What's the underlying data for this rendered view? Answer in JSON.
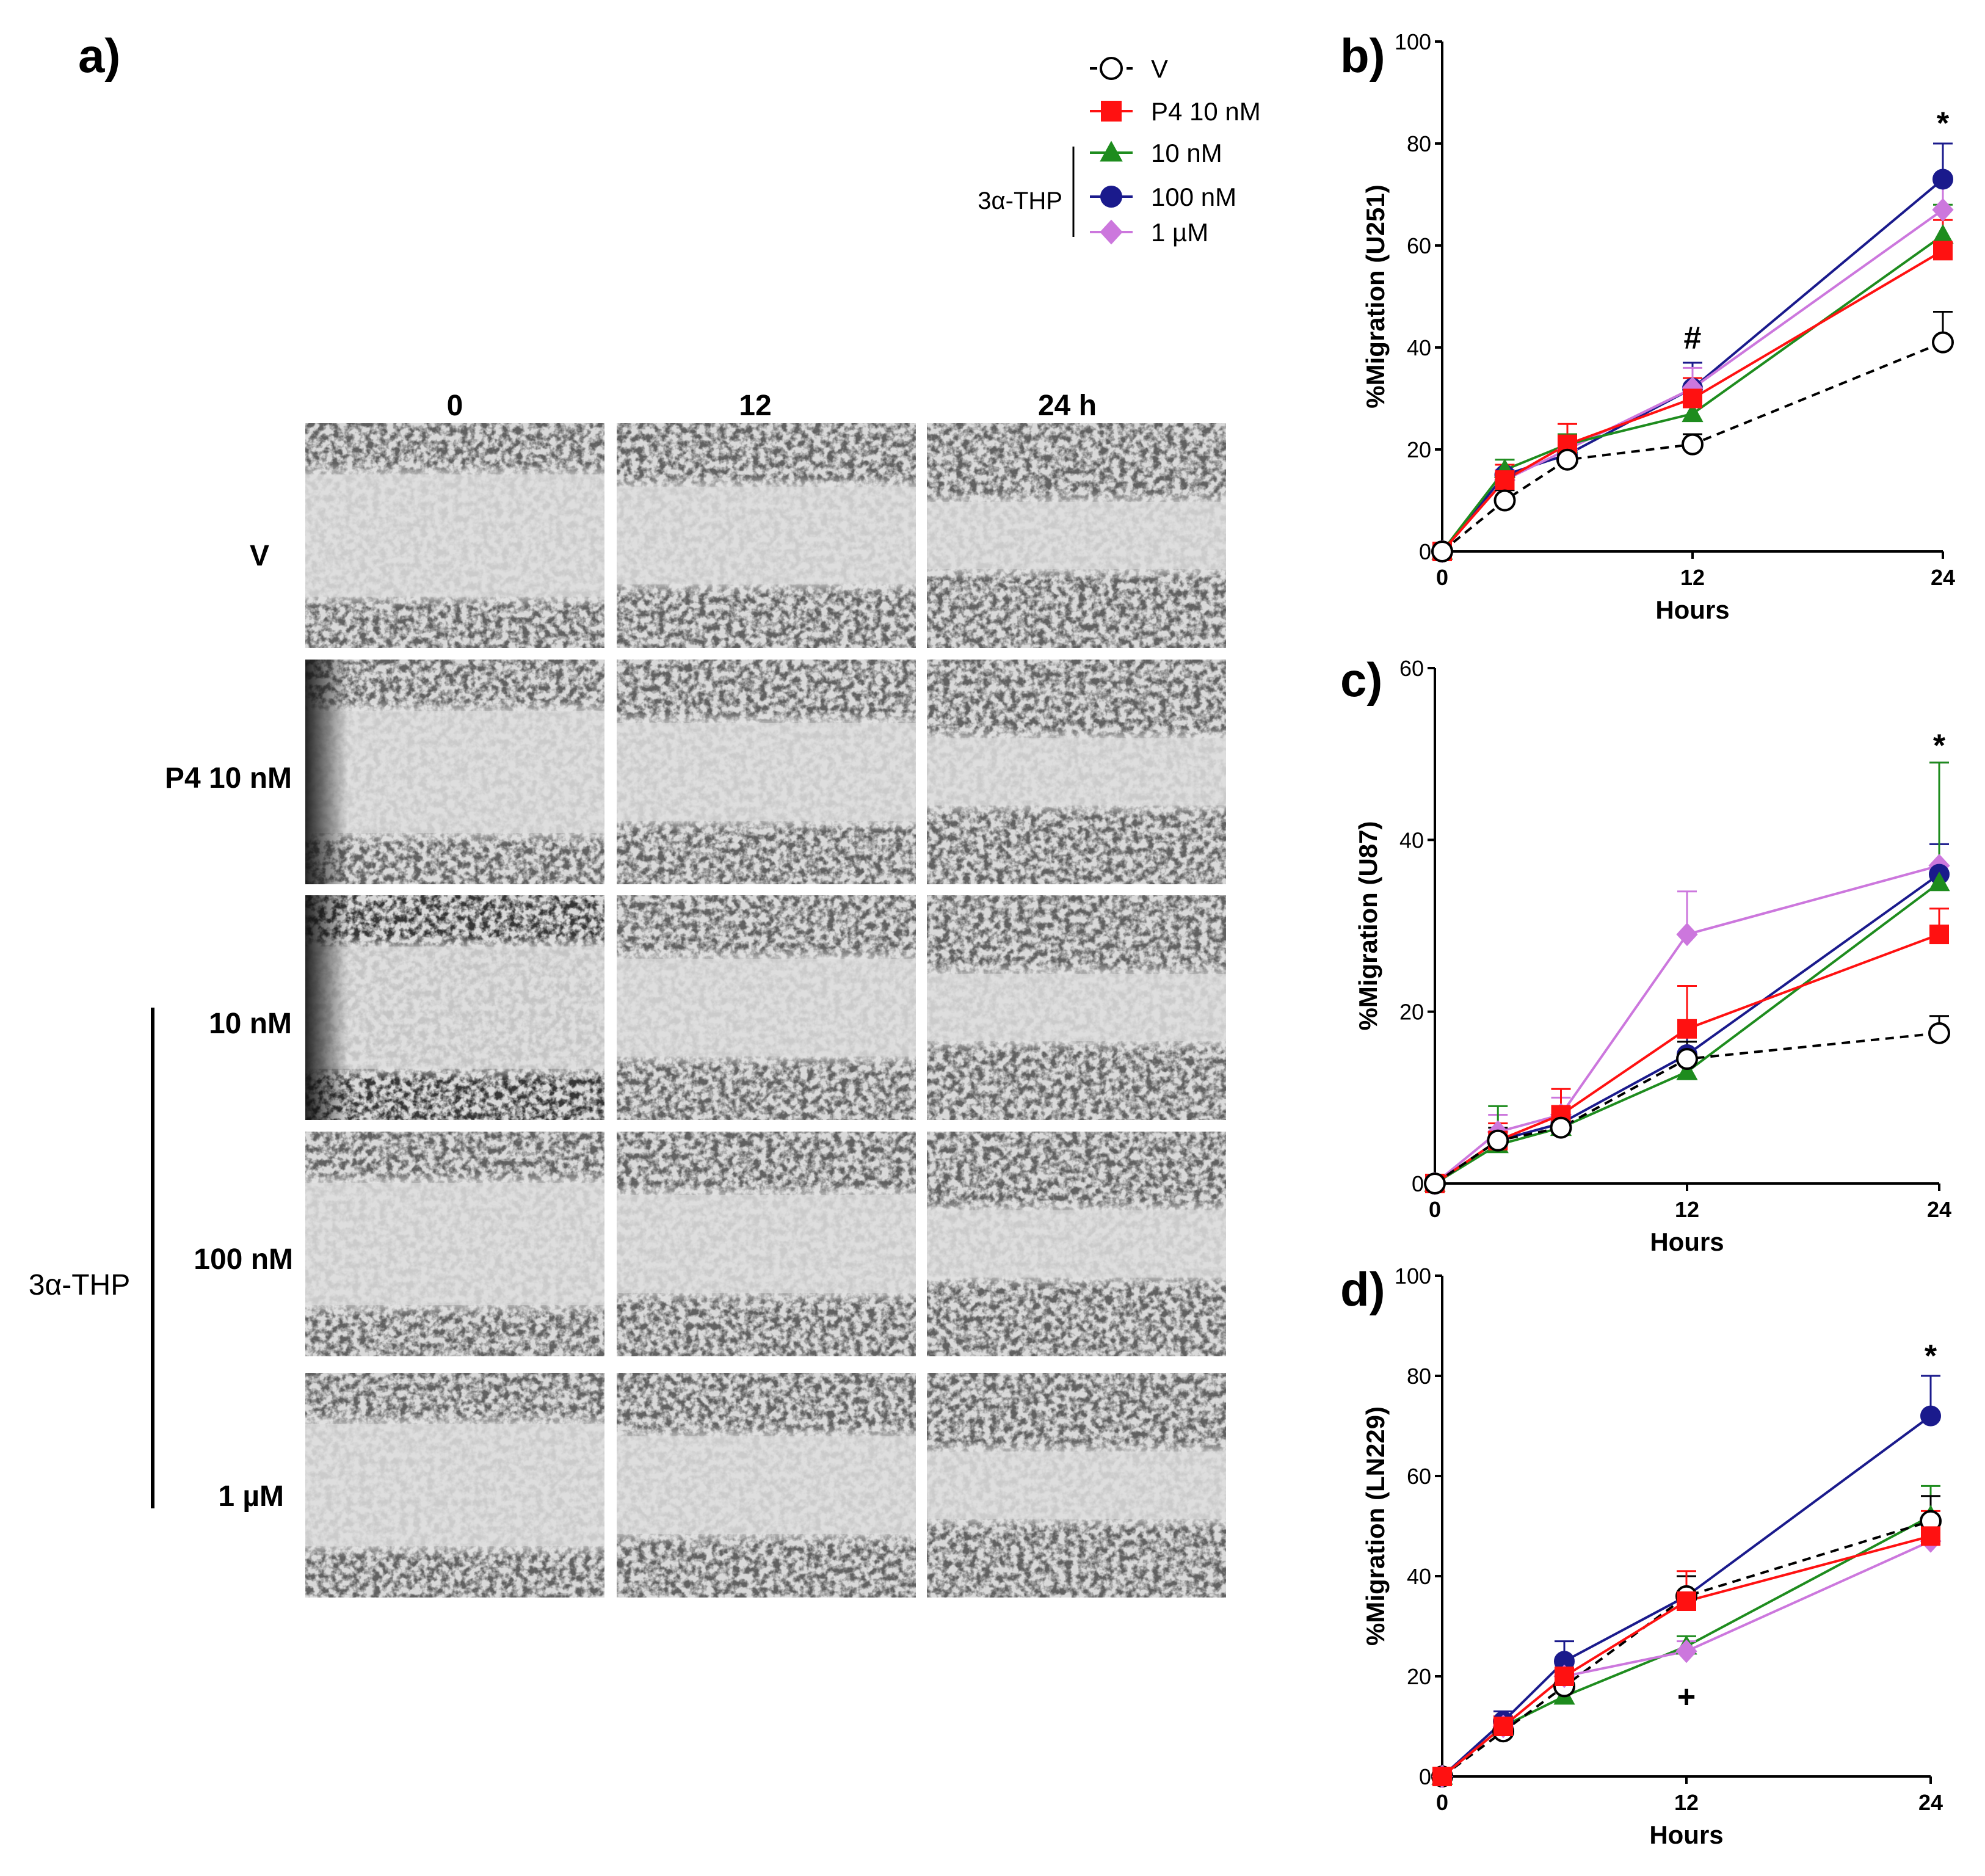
{
  "panel_a": {
    "label": "a)",
    "columns": [
      "0",
      "12",
      "24 h"
    ],
    "rows": [
      "V",
      "P4 10 nM",
      "10 nM",
      "100 nM",
      "1 µM"
    ],
    "group_label": "3α-THP"
  },
  "legend": {
    "group_label": "3α-THP",
    "entries": [
      {
        "label": "V",
        "color": "#000000",
        "marker": "open-circle",
        "dashed": true
      },
      {
        "label": "P4 10 nM",
        "color": "#ff1111",
        "marker": "square",
        "dashed": false
      },
      {
        "label": "10 nM",
        "color": "#1e8c1e",
        "marker": "triangle",
        "dashed": false
      },
      {
        "label": "100 nM",
        "color": "#1a1a8c",
        "marker": "circle",
        "dashed": false
      },
      {
        "label": "1 µM",
        "color": "#cc77dd",
        "marker": "diamond",
        "dashed": false
      }
    ]
  },
  "chart_data": [
    {
      "panel": "b)",
      "type": "line",
      "ylabel": "%Migration (U251)",
      "xlabel": "Hours",
      "xlim": [
        0,
        24
      ],
      "ylim": [
        0,
        100
      ],
      "xticks": [
        0,
        12,
        24
      ],
      "yticks": [
        0,
        20,
        40,
        60,
        80,
        100
      ],
      "annotations": [
        {
          "text": "#",
          "x": 12,
          "y": 42
        },
        {
          "text": "*",
          "x": 24,
          "y": 84
        }
      ],
      "series": [
        {
          "name": "100 nM",
          "x": [
            0,
            3,
            6,
            12,
            24
          ],
          "y": [
            0,
            15,
            19,
            32,
            73
          ],
          "err": [
            0,
            2,
            2,
            5,
            7
          ]
        },
        {
          "name": "1 µM",
          "x": [
            0,
            3,
            6,
            12,
            24
          ],
          "y": [
            0,
            14,
            20,
            32,
            67
          ],
          "err": [
            0,
            2,
            2,
            4,
            6
          ]
        },
        {
          "name": "10 nM",
          "x": [
            0,
            3,
            6,
            12,
            24
          ],
          "y": [
            0,
            16,
            21,
            27,
            62
          ],
          "err": [
            0,
            2,
            2,
            3,
            6
          ]
        },
        {
          "name": "P4 10 nM",
          "x": [
            0,
            3,
            6,
            12,
            24
          ],
          "y": [
            0,
            14,
            21,
            30,
            59
          ],
          "err": [
            0,
            3,
            4,
            4,
            6
          ]
        },
        {
          "name": "V",
          "x": [
            0,
            3,
            6,
            12,
            24
          ],
          "y": [
            0,
            10,
            18,
            21,
            41
          ],
          "err": [
            0,
            2,
            2,
            2,
            6
          ]
        }
      ]
    },
    {
      "panel": "c)",
      "type": "line",
      "ylabel": "%Migration (U87)",
      "xlabel": "Hours",
      "xlim": [
        0,
        24
      ],
      "ylim": [
        0,
        60
      ],
      "xticks": [
        0,
        12,
        24
      ],
      "yticks": [
        0,
        20,
        40,
        60
      ],
      "annotations": [
        {
          "text": "*",
          "x": 24,
          "y": 51
        }
      ],
      "series": [
        {
          "name": "1 µM",
          "x": [
            0,
            3,
            6,
            12,
            24
          ],
          "y": [
            0,
            6,
            8,
            29,
            37
          ],
          "err": [
            0,
            2,
            2,
            5,
            12
          ]
        },
        {
          "name": "100 nM",
          "x": [
            0,
            3,
            6,
            12,
            24
          ],
          "y": [
            0,
            5,
            7,
            15,
            36
          ],
          "err": [
            0,
            2,
            2,
            3,
            3.5
          ]
        },
        {
          "name": "10 nM",
          "x": [
            0,
            3,
            6,
            12,
            24
          ],
          "y": [
            0,
            4.5,
            6.5,
            13,
            35
          ],
          "err": [
            0,
            4.5,
            2,
            2,
            14
          ]
        },
        {
          "name": "P4 10 nM",
          "x": [
            0,
            3,
            6,
            12,
            24
          ],
          "y": [
            0,
            5,
            8,
            18,
            29
          ],
          "err": [
            0,
            2,
            3,
            5,
            3
          ]
        },
        {
          "name": "V",
          "x": [
            0,
            3,
            6,
            12,
            24
          ],
          "y": [
            0,
            5,
            6.5,
            14.5,
            17.5
          ],
          "err": [
            0,
            1.5,
            1,
            2,
            2
          ]
        }
      ]
    },
    {
      "panel": "d)",
      "type": "line",
      "ylabel": "%Migration (LN229)",
      "xlabel": "Hours",
      "xlim": [
        0,
        24
      ],
      "ylim": [
        0,
        100
      ],
      "xticks": [
        0,
        12,
        24
      ],
      "yticks": [
        0,
        20,
        40,
        60,
        80,
        100
      ],
      "annotations": [
        {
          "text": "*",
          "x": 24,
          "y": 84
        },
        {
          "text": "+",
          "x": 12,
          "y": 16
        }
      ],
      "series": [
        {
          "name": "100 nM",
          "x": [
            0,
            3,
            6,
            12,
            24
          ],
          "y": [
            0,
            11,
            23,
            36,
            72
          ],
          "err": [
            0,
            2,
            4,
            4,
            8
          ]
        },
        {
          "name": "10 nM",
          "x": [
            0,
            3,
            6,
            12,
            24
          ],
          "y": [
            0,
            10,
            16,
            26,
            52
          ],
          "err": [
            0,
            2,
            2,
            2,
            6
          ]
        },
        {
          "name": "V",
          "x": [
            0,
            3,
            6,
            12,
            24
          ],
          "y": [
            0,
            9,
            18,
            36,
            51
          ],
          "err": [
            0,
            2,
            3,
            4,
            5
          ]
        },
        {
          "name": "1 µM",
          "x": [
            0,
            3,
            6,
            12,
            24
          ],
          "y": [
            0,
            10,
            20,
            25,
            47
          ],
          "err": [
            0,
            2,
            3,
            2,
            4
          ]
        },
        {
          "name": "P4 10 nM",
          "x": [
            0,
            3,
            6,
            12,
            24
          ],
          "y": [
            0,
            10,
            20,
            35,
            48
          ],
          "err": [
            0,
            2,
            3,
            6,
            5
          ]
        }
      ]
    }
  ]
}
